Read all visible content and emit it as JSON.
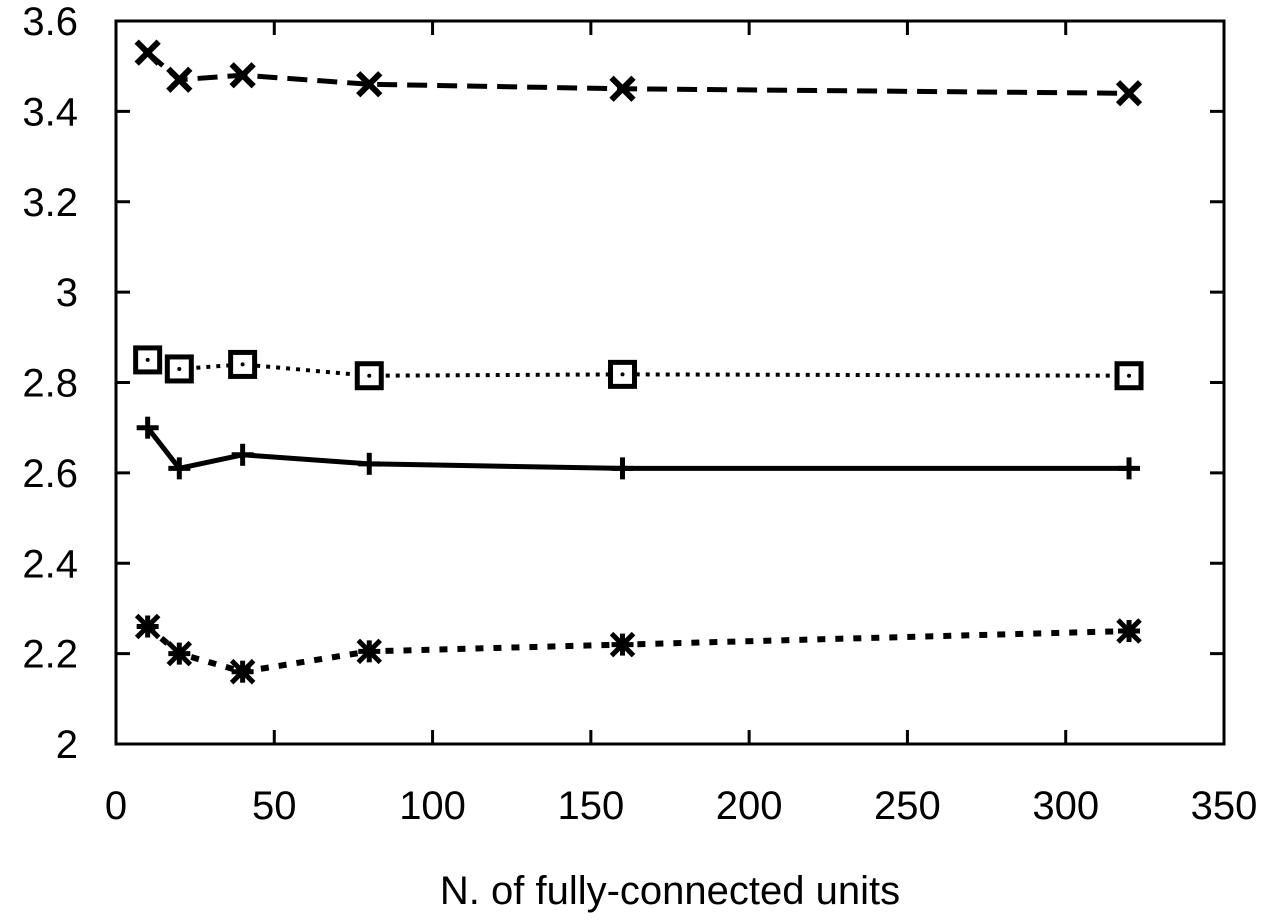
{
  "chart_data": {
    "type": "line",
    "title": "",
    "xlabel": "N. of fully-connected units",
    "ylabel": "",
    "xlim": [
      0,
      350
    ],
    "ylim": [
      2,
      3.6
    ],
    "x_ticks": [
      0,
      50,
      100,
      150,
      200,
      250,
      300,
      350
    ],
    "x_tick_labels": [
      "0",
      "50",
      "100",
      "150",
      "200",
      "250",
      "300",
      "350"
    ],
    "y_ticks": [
      2,
      2.2,
      2.4,
      2.6,
      2.8,
      3,
      3.2,
      3.4,
      3.6
    ],
    "y_tick_labels": [
      "2",
      "2.2",
      "2.4",
      "2.6",
      "2.8",
      "3",
      "3.2",
      "3.4",
      "3.6"
    ],
    "grid": false,
    "x": [
      10,
      20,
      40,
      80,
      160,
      320
    ],
    "series": [
      {
        "values": [
          3.53,
          3.47,
          3.48,
          3.46,
          3.45,
          3.44
        ],
        "marker": "x",
        "line": "dashed",
        "color": "#000000"
      },
      {
        "values": [
          2.85,
          2.83,
          2.84,
          2.815,
          2.818,
          2.815
        ],
        "marker": "square",
        "line": "dotted",
        "color": "#000000"
      },
      {
        "values": [
          2.7,
          2.61,
          2.64,
          2.62,
          2.61,
          2.61
        ],
        "marker": "plus",
        "line": "solid",
        "color": "#000000"
      },
      {
        "values": [
          2.26,
          2.2,
          2.16,
          2.205,
          2.22,
          2.25
        ],
        "marker": "asterisk",
        "line": "dotted-coarse",
        "color": "#000000"
      }
    ]
  }
}
